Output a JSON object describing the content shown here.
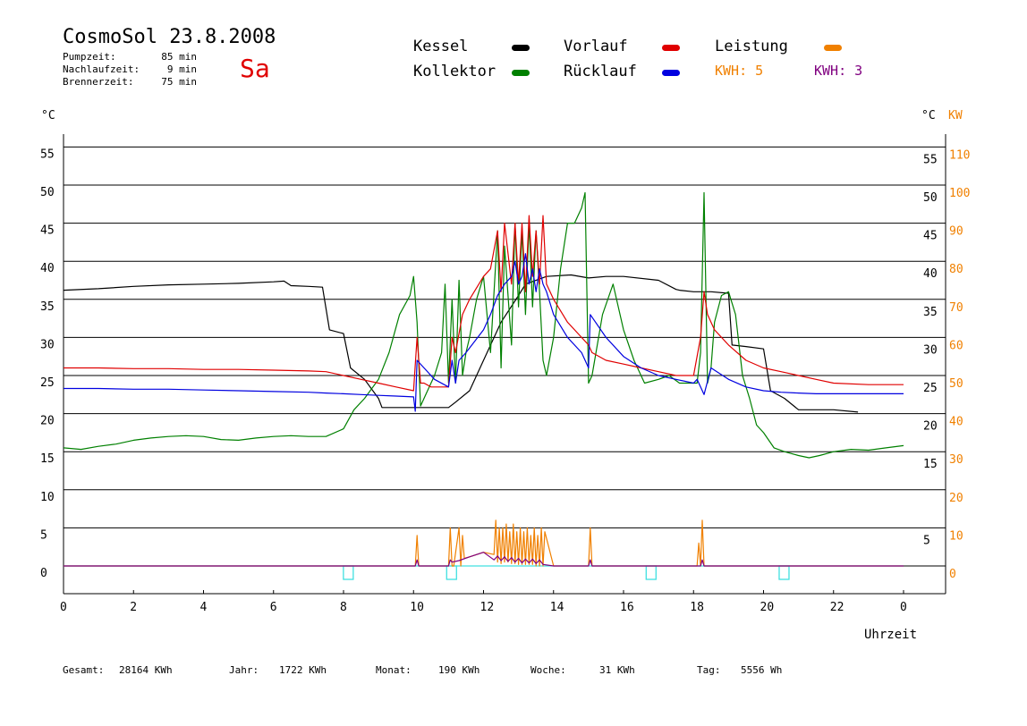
{
  "header": {
    "title": "CosmoSol 23.8.2008",
    "weekday": "Sa",
    "stats": [
      {
        "label": "Pumpzeit:",
        "value": "85 min"
      },
      {
        "label": "Nachlaufzeit:",
        "value": "9 min"
      },
      {
        "label": "Brennerzeit:",
        "value": "75 min"
      }
    ]
  },
  "legend": {
    "kessel": {
      "label": "Kessel",
      "color": "#000000"
    },
    "kollektor": {
      "label": "Kollektor",
      "color": "#008000"
    },
    "vorlauf": {
      "label": "Vorlauf",
      "color": "#e00000"
    },
    "ruecklauf": {
      "label": "Rücklauf",
      "color": "#0000e0"
    },
    "leistung": {
      "label": "Leistung",
      "color": "#f08000"
    },
    "kwh1": {
      "text": "KWH: 5",
      "color": "#f08000"
    },
    "kwh2": {
      "text": "KWH: 3",
      "color": "#800080"
    }
  },
  "axes": {
    "left_unit": "°C",
    "right_unit": "°C",
    "right_unit2": "KW",
    "xlabel": "Uhrzeit"
  },
  "footer": [
    {
      "label": "Gesamt:",
      "value": "28164 KWh"
    },
    {
      "label": "Jahr:",
      "value": "1722 KWh"
    },
    {
      "label": "Monat:",
      "value": "190 KWh"
    },
    {
      "label": "Woche:",
      "value": "31 KWh"
    },
    {
      "label": "Tag:",
      "value": "5556 Wh"
    }
  ],
  "chart_data": {
    "type": "line",
    "x_range": [
      0,
      24
    ],
    "xticks": [
      "0",
      "2",
      "4",
      "6",
      "8",
      "10",
      "12",
      "14",
      "16",
      "18",
      "20",
      "22",
      "0"
    ],
    "y_range": [
      -5,
      57
    ],
    "yticks_left": [
      0,
      5,
      10,
      15,
      20,
      25,
      30,
      35,
      40,
      45,
      50,
      55
    ],
    "yticks_right_celsius": [
      5,
      15,
      20,
      25,
      30,
      35,
      40,
      45,
      50,
      55
    ],
    "yticks_right_kw": [
      0,
      10,
      20,
      30,
      40,
      50,
      60,
      70,
      80,
      90,
      100,
      110
    ],
    "grid": "horizontal",
    "series": [
      {
        "name": "Kessel",
        "color": "#000000",
        "x": [
          0,
          1,
          2,
          3,
          4,
          5,
          6,
          6.3,
          6.5,
          7,
          7.4,
          7.6,
          8,
          8.2,
          8.6,
          9,
          9.1,
          10,
          10.5,
          11,
          11.2,
          11.6,
          12,
          12.5,
          13,
          13.2,
          13.8,
          14.5,
          15,
          15.5,
          16,
          17,
          17.5,
          17.6,
          18,
          18.5,
          19,
          19.1,
          19.5,
          20,
          20.2,
          20.6,
          21,
          22,
          22.7
        ],
        "y": [
          36.2,
          36.4,
          36.7,
          36.9,
          37,
          37.1,
          37.3,
          37.4,
          36.8,
          36.7,
          36.6,
          31,
          30.5,
          26,
          24.5,
          22,
          20.8,
          20.8,
          20.8,
          20.8,
          21.5,
          23,
          27,
          32,
          35.5,
          37,
          38,
          38.2,
          37.8,
          38,
          38,
          37.5,
          36.3,
          36.2,
          36,
          36,
          35.8,
          29,
          28.8,
          28.5,
          23,
          22,
          20.5,
          20.5,
          20.2
        ]
      },
      {
        "name": "Kollektor",
        "color": "#008000",
        "x": [
          0,
          0.5,
          1,
          1.5,
          2,
          2.5,
          3,
          3.5,
          4,
          4.5,
          5,
          5.5,
          6,
          6.5,
          7,
          7.5,
          8,
          8.3,
          8.6,
          9,
          9.3,
          9.6,
          9.9,
          10,
          10.1,
          10.2,
          10.4,
          10.6,
          10.8,
          10.9,
          11,
          11.1,
          11.2,
          11.3,
          11.4,
          11.5,
          11.6,
          11.8,
          12,
          12.2,
          12.4,
          12.5,
          12.6,
          12.8,
          12.9,
          13,
          13.1,
          13.2,
          13.3,
          13.4,
          13.5,
          13.6,
          13.7,
          13.8,
          14,
          14.2,
          14.4,
          14.6,
          14.8,
          14.9,
          15,
          15.1,
          15.4,
          15.7,
          16,
          16.3,
          16.6,
          17,
          17.3,
          17.6,
          18,
          18.1,
          18.2,
          18.3,
          18.4,
          18.5,
          18.6,
          18.8,
          19,
          19.2,
          19.4,
          19.6,
          19.8,
          20,
          20.3,
          20.6,
          21,
          21.3,
          21.6,
          22,
          22.5,
          23,
          23.5,
          24
        ],
        "y": [
          15.5,
          15.3,
          15.7,
          16,
          16.5,
          16.8,
          17,
          17.1,
          17,
          16.6,
          16.5,
          16.8,
          17,
          17.1,
          17,
          17,
          18,
          20.5,
          22,
          24.5,
          28,
          33,
          35.5,
          38,
          32,
          21,
          23,
          25,
          28,
          37,
          24,
          35,
          24,
          37.5,
          25,
          28,
          30,
          35,
          38,
          28,
          44,
          26,
          42,
          29,
          45,
          34,
          44,
          33,
          45,
          34,
          44,
          36,
          27,
          25,
          30,
          39,
          45,
          45,
          47,
          49,
          24,
          25,
          33,
          37,
          31,
          27,
          24,
          24.5,
          25,
          24,
          24,
          24,
          28,
          49,
          24,
          26,
          32,
          35.5,
          36,
          33,
          25,
          22,
          18.5,
          17.5,
          15.5,
          15,
          14.5,
          14.2,
          14.5,
          15,
          15.3,
          15.2,
          15.5,
          15.8
        ]
      },
      {
        "name": "Vorlauf",
        "color": "#e00000",
        "x": [
          0,
          1,
          2,
          3,
          4,
          5,
          6,
          7,
          7.5,
          8,
          8.5,
          9,
          9.5,
          10,
          10.1,
          10.2,
          10.3,
          10.5,
          11,
          11.1,
          11.2,
          11.4,
          11.6,
          12,
          12.2,
          12.4,
          12.5,
          12.6,
          12.8,
          12.9,
          13,
          13.1,
          13.2,
          13.3,
          13.4,
          13.5,
          13.6,
          13.7,
          13.8,
          14,
          14.4,
          14.8,
          15,
          15.1,
          15.5,
          16,
          16.5,
          17,
          17.5,
          18,
          18.2,
          18.3,
          18.4,
          18.5,
          18.6,
          19,
          19.5,
          20,
          20.5,
          21,
          21.5,
          22,
          23,
          24
        ],
        "y": [
          26,
          26,
          25.9,
          25.9,
          25.8,
          25.8,
          25.7,
          25.6,
          25.5,
          25,
          24.5,
          24,
          23.5,
          23,
          30,
          24,
          24,
          23.5,
          23.5,
          30,
          28,
          33,
          35,
          38,
          39,
          44,
          36,
          45,
          37,
          45,
          37,
          45,
          36,
          46,
          38,
          44,
          37,
          46,
          37,
          35,
          32,
          30,
          29,
          28,
          27,
          26.5,
          26,
          25.5,
          25,
          25,
          30,
          36,
          33,
          32,
          31,
          29,
          27,
          26,
          25.5,
          25,
          24.5,
          24,
          23.8,
          23.8
        ]
      },
      {
        "name": "Rücklauf",
        "color": "#0000e0",
        "x": [
          0,
          1,
          2,
          3,
          4,
          5,
          6,
          7,
          7.5,
          8,
          8.5,
          9,
          9.5,
          10,
          10.05,
          10.1,
          10.3,
          10.6,
          11,
          11.1,
          11.2,
          11.3,
          11.5,
          12,
          12.2,
          12.4,
          12.6,
          12.8,
          12.9,
          13,
          13.1,
          13.2,
          13.3,
          13.4,
          13.5,
          13.6,
          13.7,
          13.8,
          14,
          14.4,
          14.8,
          15,
          15.05,
          15.5,
          16,
          16.5,
          17,
          17.5,
          18,
          18.1,
          18.2,
          18.3,
          18.5,
          19,
          19.5,
          20,
          20.5,
          21,
          21.5,
          22,
          23,
          24
        ],
        "y": [
          23.3,
          23.3,
          23.2,
          23.2,
          23.1,
          23,
          22.9,
          22.8,
          22.7,
          22.6,
          22.5,
          22.4,
          22.3,
          22.2,
          20.3,
          27,
          26,
          24.5,
          23.5,
          27,
          24,
          27,
          28,
          31,
          33,
          35.5,
          37,
          38,
          40,
          37,
          38,
          41,
          37,
          39,
          36,
          39,
          37,
          36,
          33,
          30,
          28,
          26,
          33,
          30,
          27.5,
          26,
          25,
          24.5,
          24,
          24.5,
          23.5,
          22.5,
          26,
          24.5,
          23.5,
          23,
          22.8,
          22.7,
          22.6,
          22.6,
          22.6,
          22.6
        ]
      },
      {
        "name": "Leistung",
        "color": "#f08000",
        "x": [
          0,
          10.05,
          10.1,
          10.15,
          10.2,
          11,
          11.05,
          11.1,
          11.15,
          11.3,
          11.35,
          11.4,
          11.45,
          11.6,
          12,
          12.3,
          12.35,
          12.4,
          12.45,
          12.5,
          12.55,
          12.6,
          12.65,
          12.7,
          12.75,
          12.8,
          12.85,
          12.9,
          12.95,
          13,
          13.05,
          13.1,
          13.15,
          13.2,
          13.25,
          13.3,
          13.35,
          13.4,
          13.45,
          13.5,
          13.55,
          13.6,
          13.65,
          13.7,
          13.75,
          14,
          15,
          15.05,
          15.1,
          15.15,
          18.1,
          18.15,
          18.2,
          18.25,
          18.3,
          24
        ],
        "y": [
          0,
          0,
          4,
          0,
          0,
          0,
          5,
          0,
          0,
          5,
          0,
          4,
          1,
          1.2,
          1.8,
          1.5,
          6,
          0.5,
          5,
          0.3,
          5,
          0.5,
          5.5,
          0.5,
          4.5,
          0.3,
          5.5,
          0.3,
          4.5,
          0.2,
          5,
          0.2,
          4.5,
          0.2,
          5,
          0.2,
          4,
          0.2,
          5,
          0,
          4,
          0,
          5,
          0,
          4.5,
          0,
          0,
          5,
          0,
          0,
          0,
          3,
          0,
          6,
          0,
          0
        ]
      },
      {
        "name": "KWH",
        "color": "#800080",
        "x": [
          0,
          10.05,
          10.1,
          10.15,
          10.2,
          11,
          11.05,
          11.1,
          11.3,
          11.6,
          12,
          12.3,
          12.4,
          12.5,
          12.6,
          12.7,
          12.8,
          12.9,
          13,
          13.1,
          13.2,
          13.3,
          13.4,
          13.5,
          13.6,
          13.7,
          14,
          15,
          15.05,
          15.1,
          18.2,
          18.25,
          18.3,
          24
        ],
        "y": [
          0,
          0,
          0.8,
          0,
          0,
          0,
          0.8,
          0.5,
          0.7,
          1.2,
          1.8,
          0.8,
          1.3,
          0.7,
          1.2,
          0.6,
          1.1,
          0.5,
          1,
          0.4,
          0.9,
          0.4,
          0.9,
          0.3,
          0.8,
          0.2,
          0,
          0,
          0.8,
          0,
          0,
          0.8,
          0,
          0
        ]
      }
    ],
    "pump_markers": [
      8.15,
      11.1,
      16.8,
      20.6
    ]
  }
}
